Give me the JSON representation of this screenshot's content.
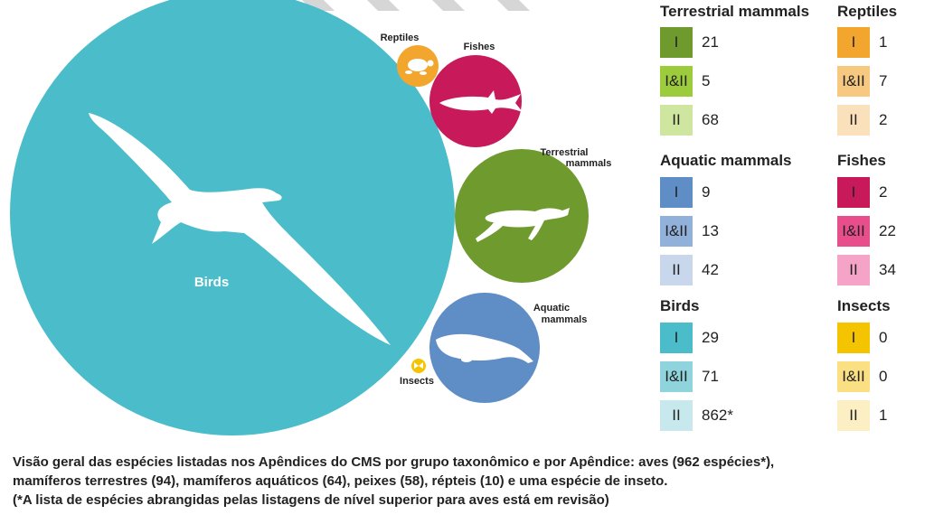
{
  "chart_data": {
    "type": "bubble",
    "title": "Visão geral das espécies listadas nos Apêndices do CMS por grupo taxonômico e por Apêndice",
    "bubbles": [
      {
        "key": "birds",
        "label": "Birds",
        "total": 962,
        "color": "#4bbdca"
      },
      {
        "key": "reptiles",
        "label": "Reptiles",
        "total": 10,
        "color": "#f2a62e"
      },
      {
        "key": "fishes",
        "label": "Fishes",
        "total": 58,
        "color": "#c8195b"
      },
      {
        "key": "terrestrial",
        "label_lines": [
          "Terrestrial",
          "mammals"
        ],
        "total": 94,
        "color": "#6f9a2e"
      },
      {
        "key": "aquatic",
        "label_lines": [
          "Aquatic",
          "mammals"
        ],
        "total": 64,
        "color": "#5f8dc6"
      },
      {
        "key": "insects",
        "label": "Insects",
        "total": 1,
        "color": "#f5c400"
      }
    ],
    "legend": [
      {
        "title": "Terrestrial mammals",
        "rows": [
          {
            "appendix": "I",
            "value": "21",
            "color": "#6f9a2e"
          },
          {
            "appendix": "I&II",
            "value": "5",
            "color": "#9ccb3b"
          },
          {
            "appendix": "II",
            "value": "68",
            "color": "#cfe6a0"
          }
        ]
      },
      {
        "title": "Aquatic mammals",
        "rows": [
          {
            "appendix": "I",
            "value": "9",
            "color": "#5f8dc6"
          },
          {
            "appendix": "I&II",
            "value": "13",
            "color": "#92b1da"
          },
          {
            "appendix": "II",
            "value": "42",
            "color": "#c8d7ec"
          }
        ]
      },
      {
        "title": "Birds",
        "rows": [
          {
            "appendix": "I",
            "value": "29",
            "color": "#4bbdca"
          },
          {
            "appendix": "I&II",
            "value": "71",
            "color": "#8fd4dc"
          },
          {
            "appendix": "II",
            "value": "862*",
            "color": "#c7e9ed"
          }
        ]
      },
      {
        "title": "Reptiles",
        "rows": [
          {
            "appendix": "I",
            "value": "1",
            "color": "#f2a62e"
          },
          {
            "appendix": "I&II",
            "value": "7",
            "color": "#f7c880"
          },
          {
            "appendix": "II",
            "value": "2",
            "color": "#fbe1bb"
          }
        ]
      },
      {
        "title": "Fishes",
        "rows": [
          {
            "appendix": "I",
            "value": "2",
            "color": "#c8195b"
          },
          {
            "appendix": "I&II",
            "value": "22",
            "color": "#e94e8c"
          },
          {
            "appendix": "II",
            "value": "34",
            "color": "#f5a3c6"
          }
        ]
      },
      {
        "title": "Insects",
        "rows": [
          {
            "appendix": "I",
            "value": "0",
            "color": "#f5c400"
          },
          {
            "appendix": "I&II",
            "value": "0",
            "color": "#fae082"
          },
          {
            "appendix": "II",
            "value": "1",
            "color": "#fcefc4"
          }
        ]
      }
    ]
  },
  "caption": {
    "line1": "Visão geral das espécies listadas nos Apêndices do CMS por grupo taxonômico e por Apêndice: aves (962 espécies*),",
    "line2": "mamíferos terrestres (94), mamíferos aquáticos (64), peixes (58), répteis (10) e uma espécie de inseto.",
    "line3": "(*A lista de espécies abrangidas pelas listagens de nível superior para aves está em revisão)"
  },
  "icons": [
    "bird-icon",
    "turtle-icon",
    "shark-icon",
    "cheetah-icon",
    "manatee-icon",
    "butterfly-icon"
  ]
}
